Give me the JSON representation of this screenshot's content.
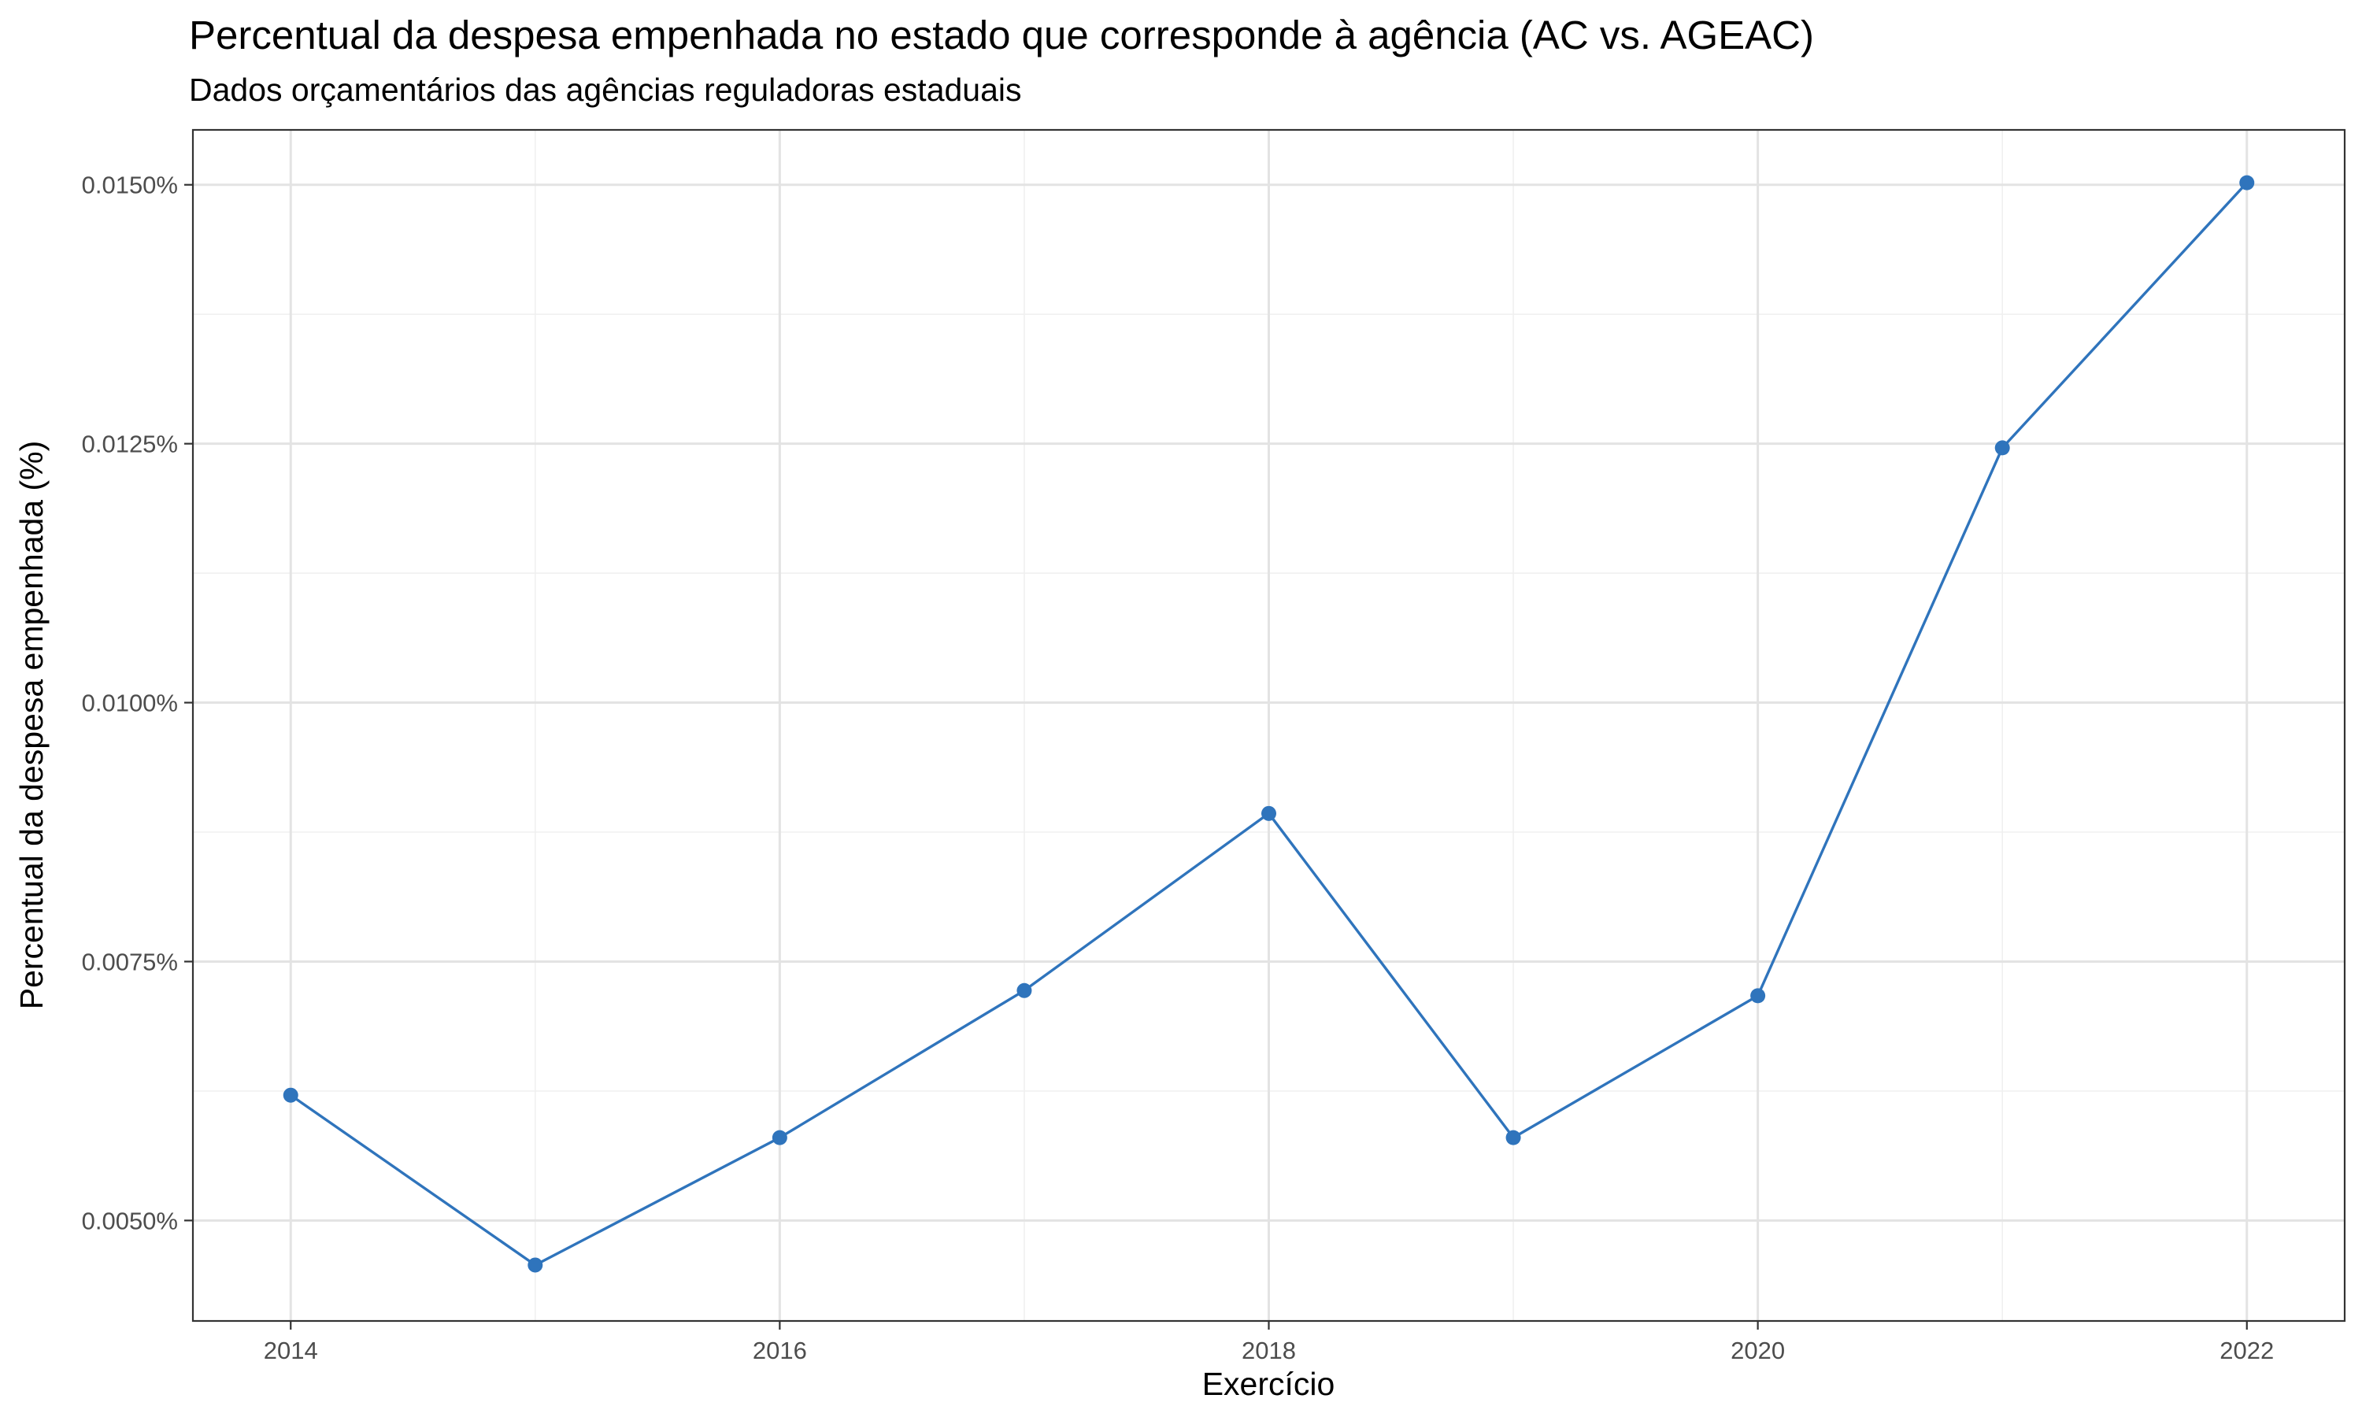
{
  "chart_data": {
    "type": "line",
    "title": "Percentual da despesa empenhada no estado que corresponde à agência (AC vs. AGEAC)",
    "subtitle": "Dados orçamentários das agências reguladoras estaduais",
    "xlabel": "Exercício",
    "ylabel": "Percentual da despesa empenhada (%)",
    "x": [
      2014,
      2015,
      2016,
      2017,
      2018,
      2019,
      2020,
      2021,
      2022
    ],
    "series": [
      {
        "values": [
          0.00621,
          0.00457,
          0.0058,
          0.00722,
          0.00893,
          0.0058,
          0.00717,
          0.01246,
          0.01502
        ]
      }
    ],
    "xlim": [
      2013.6,
      2022.4
    ],
    "ylim": [
      0.00403,
      0.01553
    ],
    "x_ticks": [
      2014,
      2016,
      2018,
      2020,
      2022
    ],
    "x_tick_labels": [
      "2014",
      "2016",
      "2018",
      "2020",
      "2022"
    ],
    "y_ticks": [
      0.005,
      0.0075,
      0.01,
      0.0125,
      0.015
    ],
    "y_tick_labels": [
      "0.0050%",
      "0.0075%",
      "0.0100%",
      "0.0125%",
      "0.0150%"
    ],
    "grid": true,
    "legend": "none",
    "colors": {
      "line": "#2f74bc",
      "point": "#2f74bc",
      "background": "#ffffff"
    }
  }
}
